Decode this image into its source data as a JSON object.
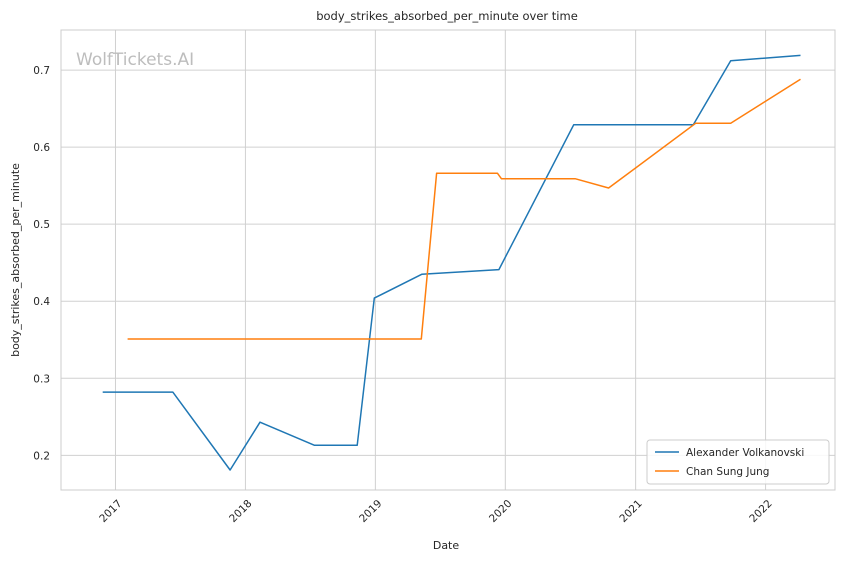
{
  "chart_data": {
    "type": "line",
    "title": "body_strikes_absorbed_per_minute over time",
    "xlabel": "Date",
    "ylabel": "body_strikes_absorbed_per_minute",
    "watermark": "WolfTickets.AI",
    "x_axis_type": "date",
    "xlim": [
      "2016-08-01",
      "2022-07-15"
    ],
    "ylim": [
      0.155,
      0.752
    ],
    "x_ticks": [
      {
        "label": "2017",
        "date": "2017-01-01"
      },
      {
        "label": "2018",
        "date": "2018-01-01"
      },
      {
        "label": "2019",
        "date": "2019-01-01"
      },
      {
        "label": "2020",
        "date": "2020-01-01"
      },
      {
        "label": "2021",
        "date": "2021-01-01"
      },
      {
        "label": "2022",
        "date": "2022-01-01"
      }
    ],
    "y_ticks": [
      {
        "label": "0.2",
        "value": 0.2
      },
      {
        "label": "0.3",
        "value": 0.3
      },
      {
        "label": "0.4",
        "value": 0.4
      },
      {
        "label": "0.5",
        "value": 0.5
      },
      {
        "label": "0.6",
        "value": 0.6
      },
      {
        "label": "0.7",
        "value": 0.7
      }
    ],
    "grid": true,
    "legend_position": "lower-right",
    "series": [
      {
        "name": "Alexander Volkanovski",
        "color": "#1f77b4",
        "points": [
          {
            "x": "2016-11-26",
            "y": 0.282
          },
          {
            "x": "2017-06-11",
            "y": 0.282
          },
          {
            "x": "2017-11-19",
            "y": 0.181
          },
          {
            "x": "2018-02-11",
            "y": 0.243
          },
          {
            "x": "2018-07-14",
            "y": 0.213
          },
          {
            "x": "2018-11-11",
            "y": 0.213
          },
          {
            "x": "2018-12-29",
            "y": 0.404
          },
          {
            "x": "2019-05-11",
            "y": 0.435
          },
          {
            "x": "2019-12-14",
            "y": 0.441
          },
          {
            "x": "2020-07-11",
            "y": 0.629
          },
          {
            "x": "2021-06-12",
            "y": 0.629
          },
          {
            "x": "2021-09-25",
            "y": 0.712
          },
          {
            "x": "2022-04-09",
            "y": 0.719
          }
        ]
      },
      {
        "name": "Chan Sung Jung",
        "color": "#ff7f0e",
        "points": [
          {
            "x": "2017-02-04",
            "y": 0.351
          },
          {
            "x": "2019-05-10",
            "y": 0.351
          },
          {
            "x": "2019-06-22",
            "y": 0.566
          },
          {
            "x": "2019-12-10",
            "y": 0.566
          },
          {
            "x": "2019-12-21",
            "y": 0.559
          },
          {
            "x": "2020-07-15",
            "y": 0.559
          },
          {
            "x": "2020-10-17",
            "y": 0.547
          },
          {
            "x": "2021-06-19",
            "y": 0.631
          },
          {
            "x": "2021-09-25",
            "y": 0.631
          },
          {
            "x": "2022-04-09",
            "y": 0.688
          }
        ]
      }
    ]
  }
}
